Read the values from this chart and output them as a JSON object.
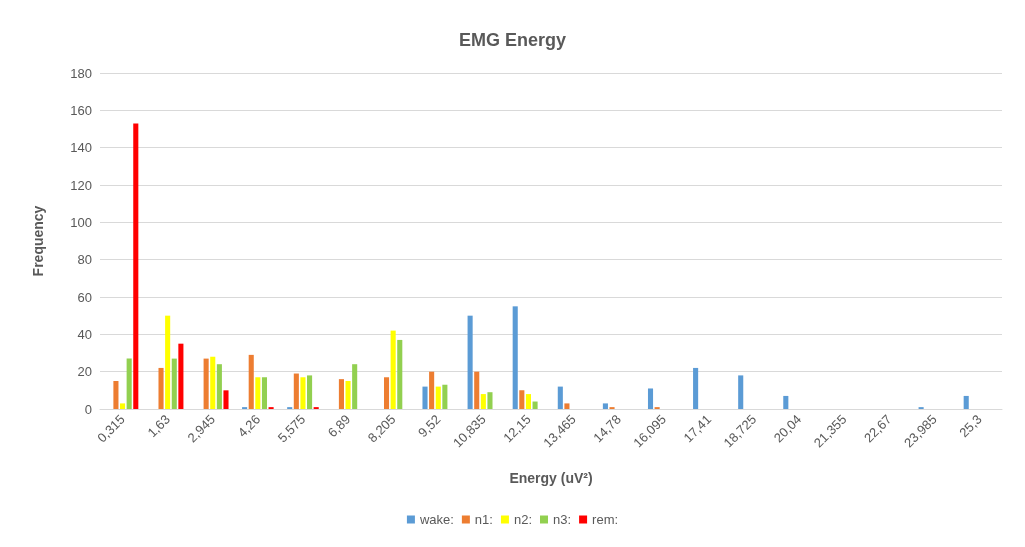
{
  "chart_data": {
    "type": "bar",
    "title": "EMG Energy",
    "xlabel": "Energy (uV²)",
    "ylabel": "Frequency",
    "categories": [
      "0,315",
      "1,63",
      "2,945",
      "4,26",
      "5,575",
      "6,89",
      "8,205",
      "9,52",
      "10,835",
      "12,15",
      "13,465",
      "14,78",
      "16,095",
      "17,41",
      "18,725",
      "20,04",
      "21,355",
      "22,67",
      "23,985",
      "25,3"
    ],
    "series": [
      {
        "name": "wake:",
        "color": "#5b9bd5",
        "values": [
          0,
          0,
          0,
          1,
          1,
          0,
          0,
          12,
          50,
          55,
          12,
          3,
          11,
          22,
          18,
          7,
          0,
          0,
          1,
          7
        ]
      },
      {
        "name": "n1:",
        "color": "#ed7d31",
        "values": [
          15,
          22,
          27,
          29,
          19,
          16,
          17,
          20,
          20,
          10,
          3,
          1,
          1,
          0,
          0,
          0,
          0,
          0,
          0,
          0
        ]
      },
      {
        "name": "n2:",
        "color": "#ffff00",
        "values": [
          3,
          50,
          28,
          17,
          17,
          15,
          42,
          12,
          8,
          8,
          0,
          0,
          0,
          0,
          0,
          0,
          0,
          0,
          0,
          0
        ]
      },
      {
        "name": "n3:",
        "color": "#92d050",
        "values": [
          27,
          27,
          24,
          17,
          18,
          24,
          37,
          13,
          9,
          4,
          0,
          0,
          0,
          0,
          0,
          0,
          0,
          0,
          0,
          0
        ]
      },
      {
        "name": "rem:",
        "color": "#ff0000",
        "values": [
          153,
          35,
          10,
          1,
          1,
          0,
          0,
          0,
          0,
          0,
          0,
          0,
          0,
          0,
          0,
          0,
          0,
          0,
          0,
          0
        ]
      }
    ],
    "ylim": [
      0,
      180
    ],
    "yticks": [
      0,
      20,
      40,
      60,
      80,
      100,
      120,
      140,
      160,
      180
    ],
    "grid": "y",
    "legend": "bottom"
  }
}
